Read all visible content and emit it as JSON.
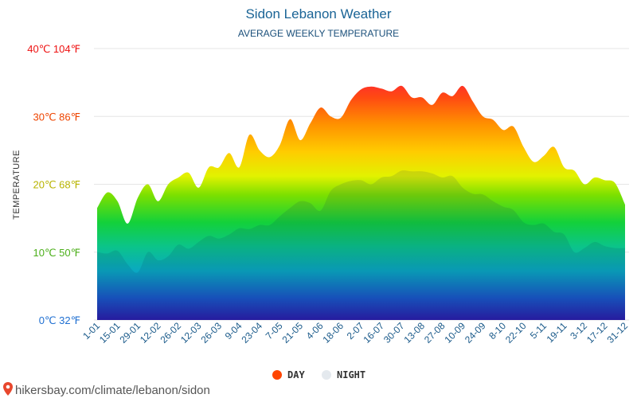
{
  "chart_data": {
    "type": "area",
    "title": "Sidon Lebanon Weather",
    "subtitle": "AVERAGE WEEKLY TEMPERATURE",
    "ylabel": "TEMPERATURE",
    "ylim": [
      0,
      40
    ],
    "yticks": [
      {
        "value": 0,
        "label": "0℃ 32℉",
        "color": "#1f6fd1"
      },
      {
        "value": 10,
        "label": "10℃ 50℉",
        "color": "#4caf1a"
      },
      {
        "value": 20,
        "label": "20℃ 68℉",
        "color": "#b8b400"
      },
      {
        "value": 30,
        "label": "30℃ 86℉",
        "color": "#ee4400"
      },
      {
        "value": 40,
        "label": "40℃ 104℉",
        "color": "#ee1111"
      }
    ],
    "x": [
      "1-01",
      "8-01",
      "15-01",
      "22-01",
      "29-01",
      "5-02",
      "12-02",
      "19-02",
      "26-02",
      "5-03",
      "12-03",
      "19-03",
      "26-03",
      "2-04",
      "9-04",
      "16-04",
      "23-04",
      "30-04",
      "7-05",
      "14-05",
      "21-05",
      "28-05",
      "4-06",
      "11-06",
      "18-06",
      "25-06",
      "2-07",
      "9-07",
      "16-07",
      "23-07",
      "30-07",
      "6-08",
      "13-08",
      "20-08",
      "27-08",
      "3-09",
      "10-09",
      "17-09",
      "24-09",
      "1-10",
      "8-10",
      "15-10",
      "22-10",
      "29-10",
      "5-11",
      "12-11",
      "19-11",
      "26-11",
      "3-12",
      "10-12",
      "17-12",
      "24-12",
      "31-12"
    ],
    "xticks_shown": [
      "1-01",
      "15-01",
      "29-01",
      "12-02",
      "26-02",
      "12-03",
      "26-03",
      "9-04",
      "23-04",
      "7-05",
      "21-05",
      "4-06",
      "18-06",
      "2-07",
      "16-07",
      "30-07",
      "13-08",
      "27-08",
      "10-09",
      "24-09",
      "8-10",
      "22-10",
      "5-11",
      "19-11",
      "3-12",
      "17-12",
      "31-12"
    ],
    "series": [
      {
        "name": "DAY",
        "values": [
          16.5,
          18.8,
          17.5,
          14.2,
          18.0,
          20.0,
          17.5,
          20.0,
          21.0,
          21.7,
          19.5,
          22.5,
          22.5,
          24.6,
          22.5,
          27.3,
          25.0,
          24.0,
          25.8,
          29.6,
          26.5,
          29.0,
          31.3,
          30.0,
          29.8,
          32.4,
          34.0,
          34.4,
          34.1,
          33.7,
          34.5,
          32.8,
          32.8,
          31.7,
          33.5,
          33.0,
          34.5,
          32.2,
          30.0,
          29.5,
          28.0,
          28.5,
          25.5,
          23.3,
          24.2,
          25.5,
          22.5,
          22.0,
          20.0,
          21.0,
          20.6,
          20.2,
          17.0
        ]
      },
      {
        "name": "NIGHT",
        "values": [
          10.0,
          9.8,
          10.2,
          8.2,
          7.0,
          10.0,
          8.8,
          9.4,
          11.1,
          10.5,
          11.5,
          12.4,
          12.0,
          12.6,
          13.5,
          13.4,
          14.0,
          14.0,
          15.3,
          16.5,
          17.5,
          17.2,
          16.1,
          19.0,
          20.0,
          20.5,
          20.6,
          20.0,
          21.0,
          21.2,
          22.0,
          21.9,
          21.9,
          21.6,
          21.0,
          21.2,
          19.5,
          18.6,
          18.5,
          17.5,
          16.7,
          16.2,
          14.4,
          14.0,
          14.2,
          13.0,
          12.6,
          10.0,
          10.6,
          11.5,
          10.9,
          10.6,
          10.6
        ]
      }
    ],
    "legend": [
      {
        "label": "DAY",
        "color": "#ff4500"
      },
      {
        "label": "NIGHT",
        "color": "#e4e9ee"
      }
    ],
    "legend_position": "bottom-center",
    "grid": true
  },
  "source": {
    "text": "hikersbay.com/climate/lebanon/sidon",
    "pin_color": "#e8472d"
  }
}
